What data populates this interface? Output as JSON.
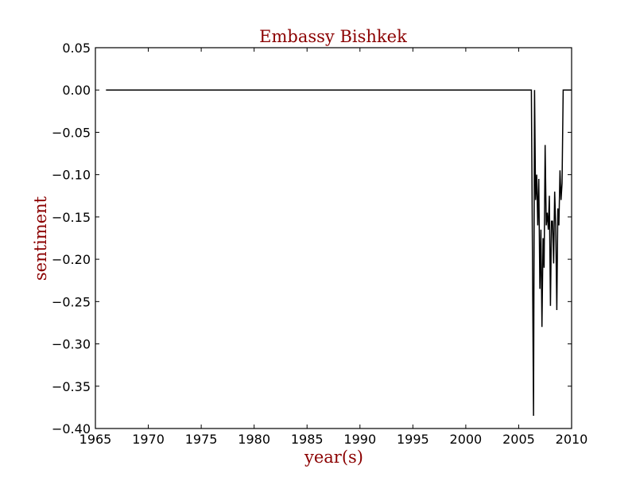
{
  "chart_data": {
    "type": "line",
    "title": "Embassy Bishkek",
    "xlabel": "year(s)",
    "ylabel": "sentiment",
    "xlim": [
      1965,
      2010
    ],
    "ylim": [
      -0.4,
      0.05
    ],
    "xticks": [
      "1965",
      "1970",
      "1975",
      "1980",
      "1985",
      "1990",
      "1995",
      "2000",
      "2005",
      "2010"
    ],
    "yticks": [
      "0.05",
      "0.00",
      "−0.05",
      "−0.10",
      "−0.15",
      "−0.20",
      "−0.25",
      "−0.30",
      "−0.35",
      "−0.40"
    ],
    "xtick_values": [
      1965,
      1970,
      1975,
      1980,
      1985,
      1990,
      1995,
      2000,
      2005,
      2010
    ],
    "ytick_values": [
      0.05,
      0.0,
      -0.05,
      -0.1,
      -0.15,
      -0.2,
      -0.25,
      -0.3,
      -0.35,
      -0.4
    ],
    "grid": false,
    "series": [
      {
        "color": "#000000",
        "x": [
          1966.0,
          2006.2,
          2006.4,
          2006.5,
          2006.6,
          2006.7,
          2006.8,
          2006.9,
          2007.0,
          2007.1,
          2007.2,
          2007.3,
          2007.4,
          2007.5,
          2007.6,
          2007.7,
          2007.8,
          2007.9,
          2008.0,
          2008.1,
          2008.2,
          2008.3,
          2008.4,
          2008.5,
          2008.6,
          2008.7,
          2008.8,
          2008.9,
          2009.0,
          2009.1,
          2009.2,
          2009.3,
          2009.4,
          2009.5,
          2009.6,
          2009.7,
          2009.8,
          2009.9,
          2010.0
        ],
        "y": [
          0.0,
          0.0,
          -0.385,
          0.0,
          -0.13,
          -0.1,
          -0.16,
          -0.105,
          -0.235,
          -0.165,
          -0.28,
          -0.175,
          -0.21,
          -0.065,
          -0.16,
          -0.145,
          -0.165,
          -0.125,
          -0.255,
          -0.155,
          -0.155,
          -0.205,
          -0.12,
          -0.16,
          -0.26,
          -0.14,
          -0.16,
          -0.095,
          -0.13,
          -0.11,
          -0.0,
          -0.0,
          -0.0,
          -0.0,
          -0.0,
          -0.0,
          -0.0,
          -0.0,
          0.0
        ]
      }
    ]
  }
}
